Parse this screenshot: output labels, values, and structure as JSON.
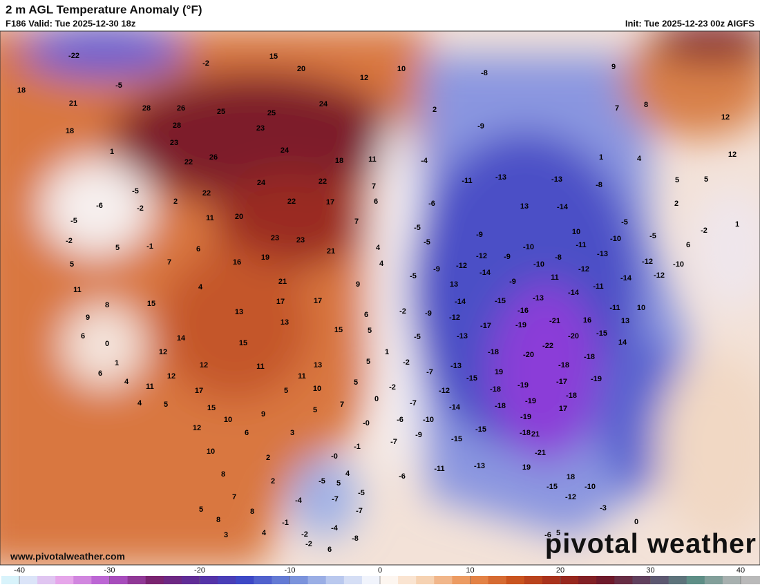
{
  "header": {
    "title": "2 m AGL Temperature Anomaly (°F)",
    "valid": "F186 Valid: Tue 2025-12-30 18z",
    "init": "Init: Tue 2025-12-23 00z AIGFS"
  },
  "footer": {
    "url": "www.pivotalweather.com",
    "logo": "pivotal weather"
  },
  "map": {
    "labels": [
      "-22",
      "-2",
      "15",
      "20",
      "10",
      "12",
      "-8",
      "9",
      "18",
      "-5",
      "21",
      "28",
      "26",
      "25",
      "25",
      "24",
      "2",
      "7",
      "8",
      "12",
      "18",
      "28",
      "23",
      "-9",
      "12",
      "1",
      "23",
      "24",
      "18",
      "11",
      "-4",
      "1",
      "4",
      "22",
      "26",
      "-5",
      "24",
      "22",
      "-11",
      "-13",
      "-13",
      "-8",
      "5",
      "5",
      "-6",
      "-2",
      "2",
      "22",
      "22",
      "17",
      "7",
      "6",
      "-6",
      "13",
      "-14",
      "2",
      "-5",
      "11",
      "20",
      "7",
      "-5",
      "-9",
      "10",
      "-5",
      "-2",
      "1",
      "-2",
      "5",
      "-1",
      "6",
      "23",
      "23",
      "4",
      "-5",
      "-10",
      "-9",
      "-11",
      "-10",
      "-5",
      "6",
      "5",
      "7",
      "16",
      "19",
      "21",
      "4",
      "-9",
      "-12",
      "-12",
      "-8",
      "-10",
      "-13",
      "-12",
      "-10",
      "11",
      "4",
      "21",
      "9",
      "-5",
      "-14",
      "11",
      "-12",
      "-14",
      "-12",
      "15",
      "8",
      "17",
      "17",
      "13",
      "-9",
      "-11",
      "-14",
      "9",
      "13",
      "-14",
      "-15",
      "-16",
      "-13",
      "10",
      "6",
      "13",
      "6",
      "-2",
      "-9",
      "-12",
      "-21",
      "16",
      "-11",
      "13",
      "0",
      "14",
      "15",
      "5",
      "-5",
      "-17",
      "-19",
      "-15",
      "-20",
      "14",
      "-13",
      "12",
      "15",
      "1",
      "-22",
      "1",
      "12",
      "11",
      "13",
      "5",
      "-2",
      "-13",
      "-18",
      "-20",
      "-18",
      "-18",
      "6",
      "12",
      "11",
      "-7",
      "-15",
      "19",
      "-19",
      "-17",
      "-19",
      "4",
      "11",
      "5",
      "-2",
      "-12",
      "-18",
      "-18",
      "17",
      "5",
      "10",
      "0",
      "-7",
      "-14",
      "-18",
      "-19",
      "17",
      "4",
      "5",
      "15",
      "5",
      "7",
      "-10",
      "-6",
      "-19",
      "10",
      "9",
      "-0",
      "12",
      "6",
      "3",
      "-9",
      "-7",
      "-15",
      "-15",
      "-18",
      "21",
      "10",
      "2",
      "-1",
      "-0",
      "-21",
      "8",
      "4",
      "-6",
      "-11",
      "-13",
      "19",
      "18",
      "2",
      "-5",
      "5",
      "-15",
      "-10",
      "7",
      "-4",
      "-7",
      "-5",
      "-12",
      "5",
      "8",
      "-7",
      "-3",
      "8",
      "-1",
      "-4",
      "0",
      "3",
      "4",
      "-2",
      "-8",
      "-6",
      "5",
      "-2",
      "6"
    ]
  },
  "colorbar": {
    "ticks": [
      -40,
      -30,
      -20,
      -10,
      0,
      10,
      20,
      30,
      40
    ]
  }
}
